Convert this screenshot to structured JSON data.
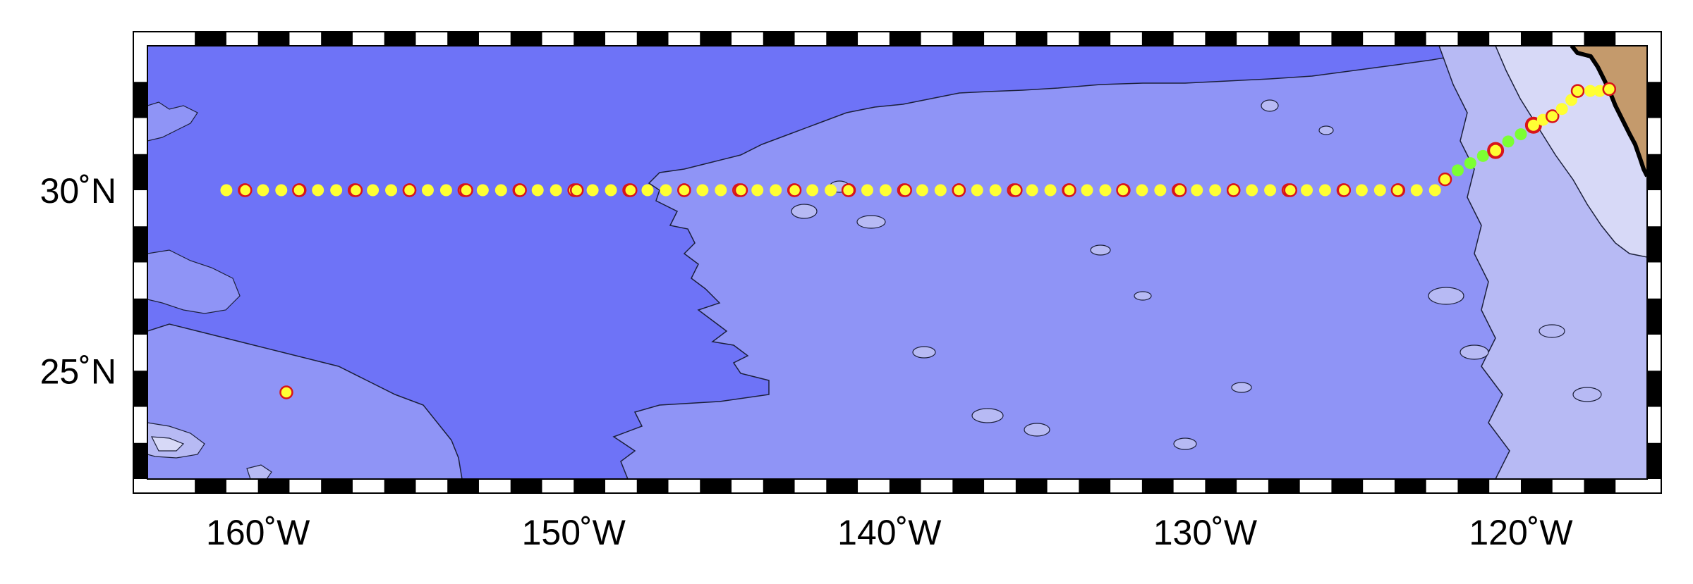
{
  "map": {
    "projection": "lat-lon",
    "lon_range": [
      -163.5,
      -116
    ],
    "lat_range": [
      22,
      34
    ],
    "colors": {
      "deep_ocean": "#6E73F7",
      "mid_ocean": "#8F94F6",
      "shallow_ocean": "#B7BAF4",
      "coastal_water": "#D7D9F7",
      "land": "#C49A6C",
      "coastline": "#000000",
      "contour": "#1B1F3A",
      "station_fill": "#FFFF33",
      "station_marked_outline": "#D8141A",
      "station_green": "#7CFF33"
    }
  },
  "axes": {
    "x_ticks": [
      {
        "value": -160,
        "label": "160˚W"
      },
      {
        "value": -150,
        "label": "150˚W"
      },
      {
        "value": -140,
        "label": "140˚W"
      },
      {
        "value": -130,
        "label": "130˚W"
      },
      {
        "value": -120,
        "label": "120˚W"
      }
    ],
    "y_ticks": [
      {
        "value": 30,
        "label": "30˚N"
      },
      {
        "value": 25,
        "label": "25˚N"
      }
    ]
  },
  "stations": {
    "transect_30n": {
      "lat": 30.0,
      "lon_start": -161.0,
      "lon_end": -122.7,
      "step": 0.58,
      "marked_lons": [
        -160.4,
        -158.7,
        -156.9,
        -155.2,
        -153.4,
        -151.7,
        -149.9,
        -148.2,
        -146.5,
        -144.7,
        -143.0,
        -141.3,
        -139.5,
        -137.8,
        -136.0,
        -134.3,
        -132.6,
        -130.8,
        -129.1,
        -127.3,
        -125.6,
        -123.9
      ]
    },
    "diagonal": [
      {
        "lon": -122.4,
        "lat": 30.3,
        "style": "marked"
      },
      {
        "lon": -122.0,
        "lat": 30.55,
        "style": "green"
      },
      {
        "lon": -121.6,
        "lat": 30.75,
        "style": "green"
      },
      {
        "lon": -121.2,
        "lat": 30.95,
        "style": "green"
      },
      {
        "lon": -120.8,
        "lat": 31.1,
        "style": "marked_strong"
      },
      {
        "lon": -120.4,
        "lat": 31.35,
        "style": "green"
      },
      {
        "lon": -120.0,
        "lat": 31.55,
        "style": "green"
      },
      {
        "lon": -119.6,
        "lat": 31.8,
        "style": "marked_strong"
      },
      {
        "lon": -119.3,
        "lat": 31.95,
        "style": "plain"
      },
      {
        "lon": -119.0,
        "lat": 32.05,
        "style": "marked"
      },
      {
        "lon": -118.7,
        "lat": 32.25,
        "style": "plain"
      },
      {
        "lon": -118.4,
        "lat": 32.5,
        "style": "plain"
      },
      {
        "lon": -118.2,
        "lat": 32.75,
        "style": "marked"
      },
      {
        "lon": -117.8,
        "lat": 32.75,
        "style": "plain"
      },
      {
        "lon": -117.5,
        "lat": 32.75,
        "style": "plain"
      },
      {
        "lon": -117.2,
        "lat": 32.8,
        "style": "marked"
      }
    ],
    "isolated": [
      {
        "lon": -159.1,
        "lat": 24.4,
        "style": "marked"
      }
    ]
  }
}
